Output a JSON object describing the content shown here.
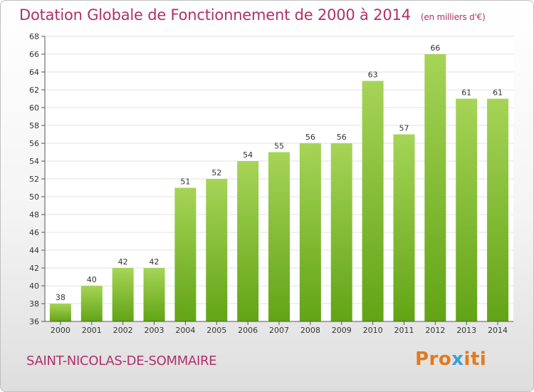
{
  "header": {
    "title": "Dotation Globale de Fonctionnement de 2000 à 2014",
    "unit": "(en milliers d'€)"
  },
  "footer": {
    "commune": "SAINT-NICOLAS-DE-SOMMAIRE",
    "logo": "Proxiti"
  },
  "colors": {
    "title": "#b0306a",
    "bar_light": "#a6d457",
    "bar_dark": "#62a416",
    "grid": "#e2e2e2"
  },
  "chart_data": {
    "type": "bar",
    "title": "Dotation Globale de Fonctionnement de 2000 à 2014",
    "subtitle": "(en milliers d'€)",
    "xlabel": "",
    "ylabel": "",
    "categories": [
      "2000",
      "2001",
      "2002",
      "2003",
      "2004",
      "2005",
      "2006",
      "2007",
      "2008",
      "2009",
      "2010",
      "2011",
      "2012",
      "2013",
      "2014"
    ],
    "values": [
      38,
      40,
      42,
      42,
      51,
      52,
      54,
      55,
      56,
      56,
      63,
      57,
      66,
      61,
      61
    ],
    "ylim": [
      36,
      68
    ],
    "yticks": [
      36,
      38,
      40,
      42,
      44,
      46,
      48,
      50,
      52,
      54,
      56,
      58,
      60,
      62,
      64,
      66,
      68
    ],
    "grid": true,
    "data_labels": true
  }
}
